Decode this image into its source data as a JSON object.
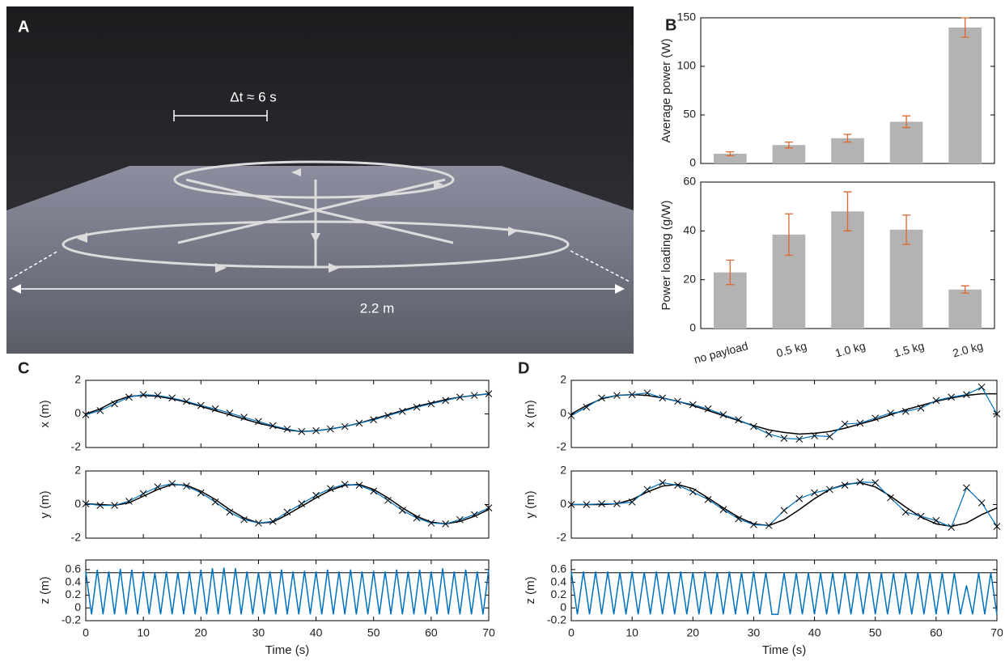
{
  "panel_labels": [
    "A",
    "B",
    "C",
    "D"
  ],
  "photo": {
    "annotations": [
      "Δt ≈ 6 s",
      "2.2 m"
    ]
  },
  "chart_data": [
    {
      "type": "bar",
      "ylabel": "Average power (W)",
      "values": [
        10,
        19,
        26,
        43,
        140
      ],
      "errors": [
        2,
        3,
        4,
        6,
        10
      ],
      "color": "#b3b3b3",
      "error_color": "#e0662c",
      "ylim": [
        0,
        150
      ],
      "yticks": [
        0,
        50,
        100,
        150
      ]
    },
    {
      "type": "bar",
      "ylabel": "Power loading (g/W)",
      "categories": [
        "no payload",
        "0.5 kg",
        "1.0 kg",
        "1.5 kg",
        "2.0 kg"
      ],
      "values": [
        23,
        38.5,
        48,
        40.5,
        16
      ],
      "errors": [
        5,
        8.5,
        8,
        6,
        1.5
      ],
      "color": "#b3b3b3",
      "error_color": "#e0662c",
      "ylim": [
        0,
        60
      ],
      "yticks": [
        0,
        20,
        40,
        60
      ]
    },
    {
      "type": "line",
      "ylabel": "x (m)",
      "xlim": [
        0,
        70
      ],
      "xticks": [
        0,
        10,
        20,
        30,
        40,
        50,
        60,
        70
      ],
      "xtick_labels": false,
      "ylim": [
        -2,
        2
      ],
      "yticks": [
        -2,
        0,
        2
      ],
      "x": [
        0,
        2.5,
        5,
        7.5,
        10,
        12.5,
        15,
        17.5,
        20,
        22.5,
        25,
        27.5,
        30,
        32.5,
        35,
        37.5,
        40,
        42.5,
        45,
        47.5,
        50,
        52.5,
        55,
        57.5,
        60,
        62.5,
        65,
        67.5,
        70
      ],
      "series": [
        {
          "color": "#000000",
          "values": [
            0,
            0.3,
            0.75,
            1.05,
            1.1,
            1.05,
            0.9,
            0.7,
            0.45,
            0.2,
            -0.05,
            -0.3,
            -0.55,
            -0.75,
            -0.95,
            -1.05,
            -1.0,
            -0.9,
            -0.75,
            -0.55,
            -0.3,
            -0.05,
            0.2,
            0.45,
            0.65,
            0.85,
            1.0,
            1.1,
            1.2
          ]
        },
        {
          "color": "#0072bd",
          "marker": "x",
          "values": [
            -0.05,
            0.2,
            0.6,
            1.0,
            1.15,
            1.1,
            0.95,
            0.75,
            0.5,
            0.3,
            0.05,
            -0.2,
            -0.45,
            -0.7,
            -0.9,
            -1.05,
            -1.0,
            -0.9,
            -0.75,
            -0.55,
            -0.35,
            -0.1,
            0.15,
            0.4,
            0.6,
            0.8,
            1.0,
            1.1,
            1.2
          ]
        }
      ]
    },
    {
      "type": "line",
      "ylabel": "y (m)",
      "xlim": [
        0,
        70
      ],
      "xticks": [
        0,
        10,
        20,
        30,
        40,
        50,
        60,
        70
      ],
      "xtick_labels": false,
      "ylim": [
        -2,
        2
      ],
      "yticks": [
        -2,
        0,
        2
      ],
      "x": [
        0,
        2.5,
        5,
        7.5,
        10,
        12.5,
        15,
        17.5,
        20,
        22.5,
        25,
        27.5,
        30,
        32.5,
        35,
        37.5,
        40,
        42.5,
        45,
        47.5,
        50,
        52.5,
        55,
        57.5,
        60,
        62.5,
        65,
        67.5,
        70
      ],
      "series": [
        {
          "color": "#000000",
          "values": [
            0.05,
            0,
            -0.05,
            0.1,
            0.5,
            0.9,
            1.2,
            1.15,
            0.8,
            0.3,
            -0.3,
            -0.8,
            -1.1,
            -1.05,
            -0.6,
            -0.1,
            0.4,
            0.85,
            1.15,
            1.2,
            0.9,
            0.4,
            -0.2,
            -0.7,
            -1.05,
            -1.15,
            -1.0,
            -0.7,
            -0.3
          ]
        },
        {
          "color": "#0072bd",
          "marker": "x",
          "values": [
            0.05,
            -0.05,
            -0.05,
            0.2,
            0.65,
            1.05,
            1.25,
            1.1,
            0.7,
            0.15,
            -0.45,
            -0.9,
            -1.1,
            -1.0,
            -0.45,
            0.05,
            0.55,
            0.95,
            1.2,
            1.15,
            0.8,
            0.25,
            -0.35,
            -0.8,
            -1.1,
            -1.15,
            -0.9,
            -0.6,
            -0.2
          ]
        }
      ]
    },
    {
      "type": "line",
      "ylabel": "z (m)",
      "xlabel": "Time (s)",
      "xlim": [
        0,
        70
      ],
      "xticks": [
        0,
        10,
        20,
        30,
        40,
        50,
        60,
        70
      ],
      "xtick_labels": true,
      "ylim": [
        -0.2,
        0.75
      ],
      "yticks": [
        -0.2,
        0,
        0.2,
        0.4,
        0.6
      ],
      "reference_line": 0.55,
      "x": [
        0,
        1,
        2,
        3,
        4,
        5,
        6,
        7,
        8,
        9,
        10,
        11,
        12,
        13,
        14,
        15,
        16,
        17,
        18,
        19,
        20,
        21,
        22,
        23,
        24,
        25,
        26,
        27,
        28,
        29,
        30,
        31,
        32,
        33,
        34,
        35,
        36,
        37,
        38,
        39,
        40,
        41,
        42,
        43,
        44,
        45,
        46,
        47,
        48,
        49,
        50,
        51,
        52,
        53,
        54,
        55,
        56,
        57,
        58,
        59,
        60,
        61,
        62,
        63,
        64,
        65,
        66,
        67,
        68,
        69,
        70
      ],
      "series": [
        {
          "color": "#0072bd",
          "values": [
            0.57,
            -0.1,
            0.6,
            -0.1,
            0.57,
            -0.1,
            0.61,
            -0.1,
            0.6,
            -0.1,
            0.57,
            -0.1,
            0.55,
            -0.1,
            0.57,
            -0.1,
            0.56,
            -0.1,
            0.57,
            -0.1,
            0.6,
            -0.1,
            0.62,
            -0.1,
            0.63,
            -0.1,
            0.62,
            -0.1,
            0.57,
            -0.1,
            0.56,
            -0.1,
            0.57,
            -0.1,
            0.6,
            -0.1,
            0.57,
            -0.1,
            0.58,
            -0.1,
            0.57,
            -0.1,
            0.6,
            -0.1,
            0.57,
            -0.1,
            0.6,
            -0.1,
            0.57,
            -0.1,
            0.58,
            -0.1,
            0.57,
            -0.1,
            0.6,
            -0.1,
            0.57,
            -0.1,
            0.6,
            -0.1,
            0.57,
            -0.1,
            0.62,
            -0.1,
            0.57,
            -0.1,
            0.6,
            -0.1,
            0.57,
            -0.1,
            0.6
          ]
        }
      ]
    },
    {
      "type": "line",
      "ylabel": "x (m)",
      "xlim": [
        0,
        70
      ],
      "xticks": [
        0,
        10,
        20,
        30,
        40,
        50,
        60,
        70
      ],
      "xtick_labels": false,
      "ylim": [
        -2,
        2
      ],
      "yticks": [
        -2,
        0,
        2
      ],
      "x": [
        0,
        2.5,
        5,
        7.5,
        10,
        12.5,
        15,
        17.5,
        20,
        22.5,
        25,
        27.5,
        30,
        32.5,
        35,
        37.5,
        40,
        42.5,
        45,
        47.5,
        50,
        52.5,
        55,
        57.5,
        60,
        62.5,
        65,
        67.5,
        70
      ],
      "series": [
        {
          "color": "#000000",
          "values": [
            0,
            0.5,
            0.9,
            1.1,
            1.15,
            1.1,
            0.95,
            0.75,
            0.5,
            0.2,
            -0.1,
            -0.4,
            -0.7,
            -0.95,
            -1.1,
            -1.2,
            -1.15,
            -1.05,
            -0.85,
            -0.6,
            -0.35,
            -0.05,
            0.25,
            0.5,
            0.75,
            0.95,
            1.1,
            1.2,
            1.2
          ]
        },
        {
          "color": "#0072bd",
          "marker": "x",
          "values": [
            -0.1,
            0.4,
            0.95,
            1.1,
            1.15,
            1.25,
            0.95,
            0.75,
            0.55,
            0.3,
            -0.05,
            -0.35,
            -0.75,
            -1.2,
            -1.45,
            -1.5,
            -1.3,
            -1.35,
            -0.6,
            -0.55,
            -0.25,
            0.05,
            0.15,
            0.35,
            0.8,
            1.0,
            1.15,
            1.6,
            0
          ]
        }
      ]
    },
    {
      "type": "line",
      "ylabel": "y (m)",
      "xlim": [
        0,
        70
      ],
      "xticks": [
        0,
        10,
        20,
        30,
        40,
        50,
        60,
        70
      ],
      "xtick_labels": false,
      "ylim": [
        -2,
        2
      ],
      "yticks": [
        -2,
        0,
        2
      ],
      "x": [
        0,
        2.5,
        5,
        7.5,
        10,
        12.5,
        15,
        17.5,
        20,
        22.5,
        25,
        27.5,
        30,
        32.5,
        35,
        37.5,
        40,
        42.5,
        45,
        47.5,
        50,
        52.5,
        55,
        57.5,
        60,
        62.5,
        65,
        67.5,
        70
      ],
      "series": [
        {
          "color": "#000000",
          "values": [
            0,
            0,
            0,
            0.05,
            0.3,
            0.75,
            1.1,
            1.2,
            0.95,
            0.4,
            -0.2,
            -0.75,
            -1.15,
            -1.25,
            -0.9,
            -0.3,
            0.35,
            0.9,
            1.2,
            1.3,
            1.05,
            0.5,
            -0.15,
            -0.75,
            -1.15,
            -1.3,
            -1.1,
            -0.6,
            -0.2
          ]
        },
        {
          "color": "#0072bd",
          "marker": "x",
          "values": [
            0,
            0,
            0.05,
            0.05,
            0.15,
            0.9,
            1.3,
            1.15,
            0.75,
            0.3,
            -0.3,
            -0.85,
            -1.2,
            -1.25,
            -0.35,
            0.35,
            0.7,
            0.9,
            1.15,
            1.35,
            1.3,
            0.4,
            -0.45,
            -0.7,
            -0.95,
            -1.35,
            1.0,
            0.1,
            -1.3
          ]
        }
      ]
    },
    {
      "type": "line",
      "ylabel": "z (m)",
      "xlabel": "Time (s)",
      "xlim": [
        0,
        70
      ],
      "xticks": [
        0,
        10,
        20,
        30,
        40,
        50,
        60,
        70
      ],
      "xtick_labels": true,
      "ylim": [
        -0.2,
        0.75
      ],
      "yticks": [
        -0.2,
        0,
        0.2,
        0.4,
        0.6
      ],
      "reference_line": 0.55,
      "x": [
        0,
        1,
        2,
        3,
        4,
        5,
        6,
        7,
        8,
        9,
        10,
        11,
        12,
        13,
        14,
        15,
        16,
        17,
        18,
        19,
        20,
        21,
        22,
        23,
        24,
        25,
        26,
        27,
        28,
        29,
        30,
        31,
        32,
        33,
        34,
        35,
        36,
        37,
        38,
        39,
        40,
        41,
        42,
        43,
        44,
        45,
        46,
        47,
        48,
        49,
        50,
        51,
        52,
        53,
        54,
        55,
        56,
        57,
        58,
        59,
        60,
        61,
        62,
        63,
        64,
        65,
        66,
        67,
        68,
        69,
        70
      ],
      "series": [
        {
          "color": "#0072bd",
          "values": [
            0.57,
            -0.1,
            0.57,
            -0.1,
            0.57,
            -0.1,
            0.57,
            -0.1,
            0.56,
            -0.1,
            0.57,
            -0.1,
            0.56,
            -0.1,
            0.57,
            -0.1,
            0.56,
            -0.1,
            0.57,
            -0.1,
            0.56,
            -0.1,
            0.57,
            -0.1,
            0.56,
            -0.1,
            0.57,
            -0.1,
            0.56,
            -0.1,
            0.57,
            -0.1,
            0.56,
            -0.1,
            -0.1,
            0.55,
            -0.1,
            0.55,
            -0.1,
            0.55,
            -0.1,
            0.55,
            -0.1,
            0.55,
            -0.1,
            0.55,
            -0.1,
            0.55,
            -0.1,
            0.55,
            -0.1,
            0.55,
            -0.1,
            0.55,
            -0.1,
            0.55,
            -0.1,
            0.55,
            -0.1,
            0.55,
            -0.1,
            0.55,
            -0.1,
            0.55,
            -0.1,
            0.35,
            -0.1,
            0.55,
            -0.1,
            0.55,
            -0.1
          ]
        }
      ]
    }
  ]
}
